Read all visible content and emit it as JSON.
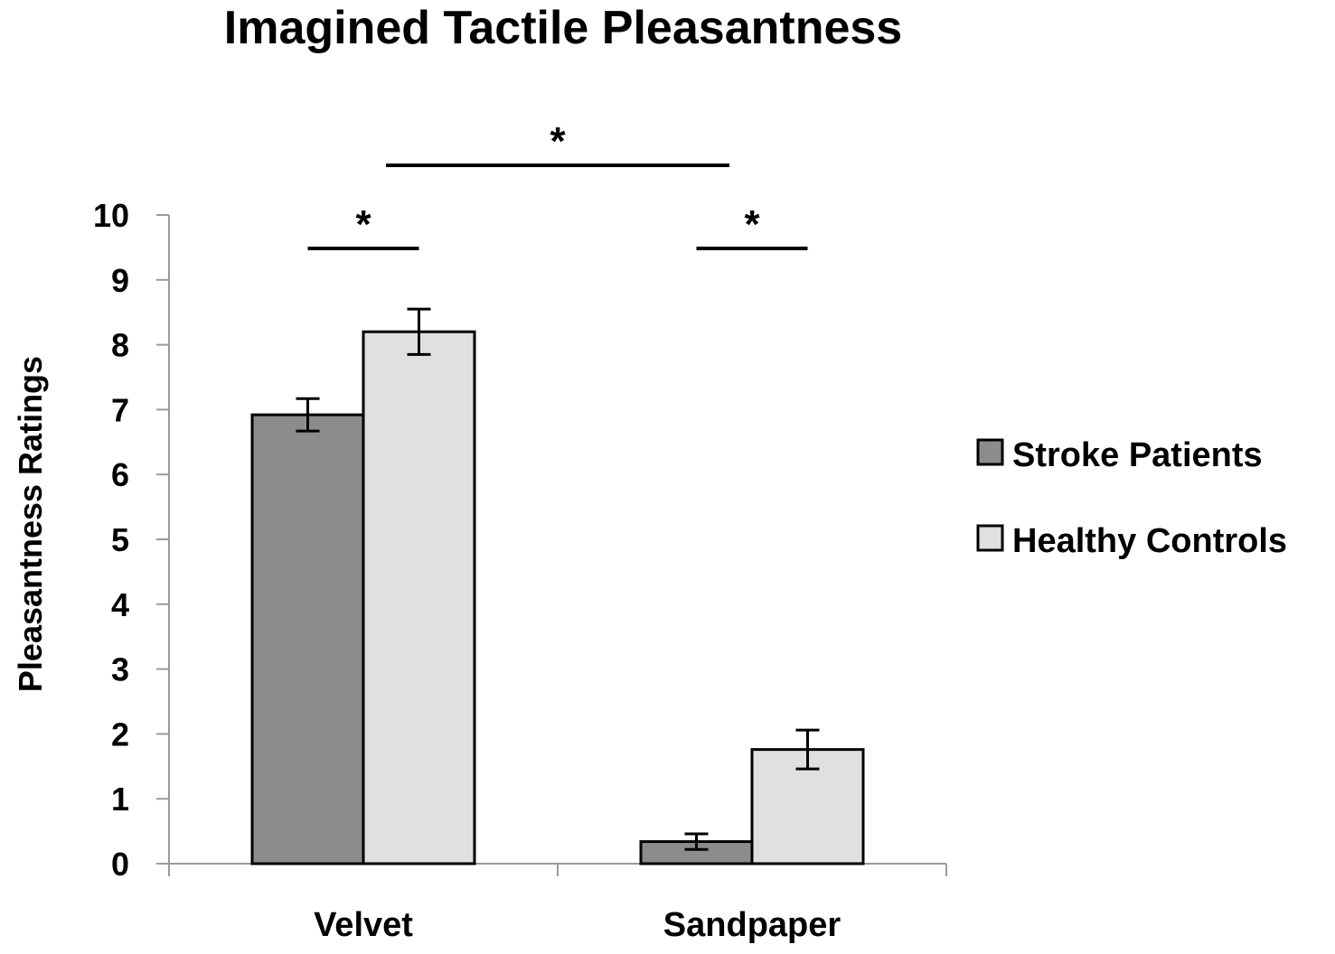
{
  "chart_data": {
    "type": "bar",
    "title": "Imagined Tactile Pleasantness",
    "xlabel": "",
    "ylabel": "Pleasantness Ratings",
    "ylim": [
      0,
      10
    ],
    "yticks": [
      "0",
      "1",
      "2",
      "3",
      "4",
      "5",
      "6",
      "7",
      "8",
      "9",
      "10"
    ],
    "categories": [
      "Velvet",
      "Sandpaper"
    ],
    "series": [
      {
        "name": "Stroke Patients",
        "color": "#8c8c8c",
        "values": [
          6.92,
          0.34
        ],
        "errors": [
          0.25,
          0.12
        ]
      },
      {
        "name": "Healthy Controls",
        "color": "#e0e0e0",
        "values": [
          8.2,
          1.76
        ],
        "errors": [
          0.35,
          0.3
        ]
      }
    ],
    "legend": "right",
    "grid": false,
    "annotations": [
      {
        "label": "*",
        "type": "between-categories"
      },
      {
        "label": "*",
        "type": "within-category",
        "category": "Velvet"
      },
      {
        "label": "*",
        "type": "within-category",
        "category": "Sandpaper"
      }
    ]
  }
}
